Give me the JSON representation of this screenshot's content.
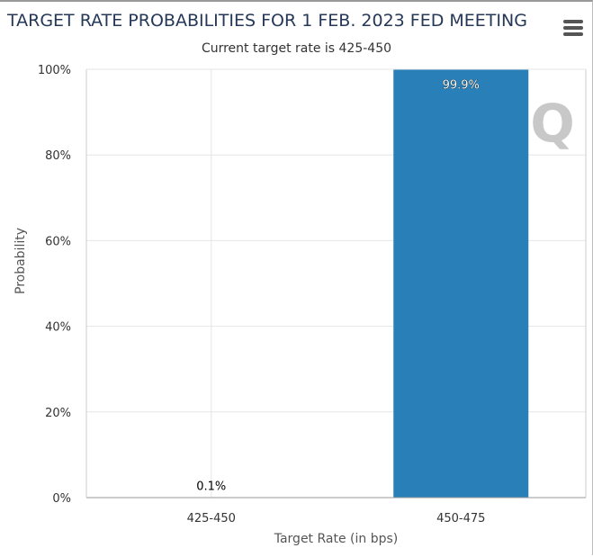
{
  "chart_data": {
    "type": "bar",
    "title": "TARGET RATE PROBABILITIES FOR 1 FEB. 2023 FED MEETING",
    "subtitle": "Current target rate is 425-450",
    "categories": [
      "425-450",
      "450-475"
    ],
    "values": [
      0.1,
      99.9
    ],
    "data_labels": [
      "0.1%",
      "99.9%"
    ],
    "xlabel": "Target Rate (in bps)",
    "ylabel": "Probability",
    "ylim": [
      0,
      100
    ],
    "yticks": [
      "0%",
      "20%",
      "40%",
      "60%",
      "80%",
      "100%"
    ],
    "grid": true,
    "bar_color": "#2980b9"
  },
  "menu_icon": "hamburger-menu-icon",
  "watermark": "Q"
}
